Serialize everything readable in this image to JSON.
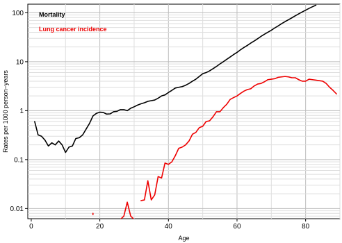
{
  "chart_data": {
    "type": "line",
    "title": "",
    "xlabel": "Age",
    "ylabel": "Rates per 1000 person−years",
    "xlim": [
      -1,
      90
    ],
    "xticks": [
      0,
      20,
      40,
      60,
      80
    ],
    "xtick_labels": [
      "0",
      "20",
      "40",
      "60",
      "80"
    ],
    "y_scale": "log",
    "ylim": [
      0.0062,
      150
    ],
    "yticks": [
      0.01,
      0.1,
      1,
      10,
      100
    ],
    "ytick_labels": [
      "0.01",
      "0.1",
      "1",
      "10",
      "100"
    ],
    "grid": true,
    "legend_position": "top-left",
    "series": [
      {
        "name": "Mortality",
        "color": "#000000",
        "points": [
          [
            1,
            0.6
          ],
          [
            2,
            0.32
          ],
          [
            3,
            0.3
          ],
          [
            4,
            0.25
          ],
          [
            5,
            0.19
          ],
          [
            6,
            0.22
          ],
          [
            7,
            0.2
          ],
          [
            8,
            0.24
          ],
          [
            9,
            0.2
          ],
          [
            10,
            0.14
          ],
          [
            11,
            0.18
          ],
          [
            12,
            0.19
          ],
          [
            13,
            0.27
          ],
          [
            14,
            0.28
          ],
          [
            15,
            0.32
          ],
          [
            16,
            0.42
          ],
          [
            17,
            0.55
          ],
          [
            18,
            0.78
          ],
          [
            19,
            0.88
          ],
          [
            20,
            0.93
          ],
          [
            21,
            0.92
          ],
          [
            22,
            0.85
          ],
          [
            23,
            0.86
          ],
          [
            24,
            0.95
          ],
          [
            25,
            0.97
          ],
          [
            26,
            1.05
          ],
          [
            27,
            1.05
          ],
          [
            28,
            1.0
          ],
          [
            29,
            1.12
          ],
          [
            30,
            1.2
          ],
          [
            31,
            1.3
          ],
          [
            32,
            1.38
          ],
          [
            33,
            1.45
          ],
          [
            34,
            1.55
          ],
          [
            35,
            1.6
          ],
          [
            36,
            1.65
          ],
          [
            37,
            1.8
          ],
          [
            38,
            2.0
          ],
          [
            39,
            2.1
          ],
          [
            40,
            2.35
          ],
          [
            41,
            2.6
          ],
          [
            42,
            2.9
          ],
          [
            43,
            3.0
          ],
          [
            44,
            3.1
          ],
          [
            45,
            3.3
          ],
          [
            46,
            3.6
          ],
          [
            47,
            4.0
          ],
          [
            48,
            4.4
          ],
          [
            49,
            5.0
          ],
          [
            50,
            5.7
          ],
          [
            51,
            6.0
          ],
          [
            52,
            6.5
          ],
          [
            53,
            7.2
          ],
          [
            54,
            8.0
          ],
          [
            55,
            9.0
          ],
          [
            56,
            10.0
          ],
          [
            57,
            11.2
          ],
          [
            58,
            12.5
          ],
          [
            59,
            14.0
          ],
          [
            60,
            15.5
          ],
          [
            61,
            17.5
          ],
          [
            62,
            19.5
          ],
          [
            63,
            21.5
          ],
          [
            64,
            24.0
          ],
          [
            65,
            26.5
          ],
          [
            66,
            29.5
          ],
          [
            67,
            33.0
          ],
          [
            68,
            36.5
          ],
          [
            69,
            40.0
          ],
          [
            70,
            44.0
          ],
          [
            71,
            49.0
          ],
          [
            72,
            54.0
          ],
          [
            73,
            60.0
          ],
          [
            74,
            66.0
          ],
          [
            75,
            72.0
          ],
          [
            76,
            79.0
          ],
          [
            77,
            87.0
          ],
          [
            78,
            95.0
          ],
          [
            79,
            104.0
          ],
          [
            80,
            113.0
          ],
          [
            81,
            123.0
          ],
          [
            82,
            133.0
          ],
          [
            83,
            143.0
          ]
        ]
      },
      {
        "name": "Lung cancer incidence",
        "color": "#ee0000",
        "points": [
          [
            18,
            0.0075
          ],
          [
            18,
            0.008
          ],
          null,
          [
            26,
            0.006
          ],
          [
            27,
            0.007
          ],
          [
            28,
            0.0135
          ],
          [
            29,
            0.007
          ],
          [
            30,
            0.006
          ],
          null,
          [
            32,
            0.0145
          ],
          [
            33,
            0.015
          ],
          [
            34,
            0.037
          ],
          [
            35,
            0.015
          ],
          [
            36,
            0.019
          ],
          [
            37,
            0.045
          ],
          [
            38,
            0.042
          ],
          [
            39,
            0.085
          ],
          [
            40,
            0.08
          ],
          [
            41,
            0.09
          ],
          [
            42,
            0.12
          ],
          [
            43,
            0.17
          ],
          [
            44,
            0.18
          ],
          [
            45,
            0.2
          ],
          [
            46,
            0.24
          ],
          [
            47,
            0.33
          ],
          [
            48,
            0.36
          ],
          [
            49,
            0.45
          ],
          [
            50,
            0.48
          ],
          [
            51,
            0.6
          ],
          [
            52,
            0.62
          ],
          [
            53,
            0.75
          ],
          [
            54,
            0.95
          ],
          [
            55,
            0.95
          ],
          [
            56,
            1.15
          ],
          [
            57,
            1.35
          ],
          [
            58,
            1.7
          ],
          [
            59,
            1.85
          ],
          [
            60,
            2.0
          ],
          [
            61,
            2.25
          ],
          [
            62,
            2.5
          ],
          [
            63,
            2.7
          ],
          [
            64,
            2.8
          ],
          [
            65,
            3.2
          ],
          [
            66,
            3.5
          ],
          [
            67,
            3.6
          ],
          [
            68,
            3.9
          ],
          [
            69,
            4.3
          ],
          [
            70,
            4.4
          ],
          [
            71,
            4.5
          ],
          [
            72,
            4.8
          ],
          [
            73,
            4.9
          ],
          [
            74,
            5.0
          ],
          [
            75,
            4.9
          ],
          [
            76,
            4.7
          ],
          [
            77,
            4.7
          ],
          [
            78,
            4.3
          ],
          [
            79,
            4.0
          ],
          [
            80,
            4.0
          ],
          [
            81,
            4.4
          ],
          [
            82,
            4.3
          ],
          [
            83,
            4.2
          ],
          [
            84,
            4.1
          ],
          [
            85,
            4.0
          ],
          [
            86,
            3.6
          ],
          [
            87,
            3.0
          ],
          [
            88,
            2.6
          ],
          [
            89,
            2.2
          ]
        ]
      }
    ]
  }
}
